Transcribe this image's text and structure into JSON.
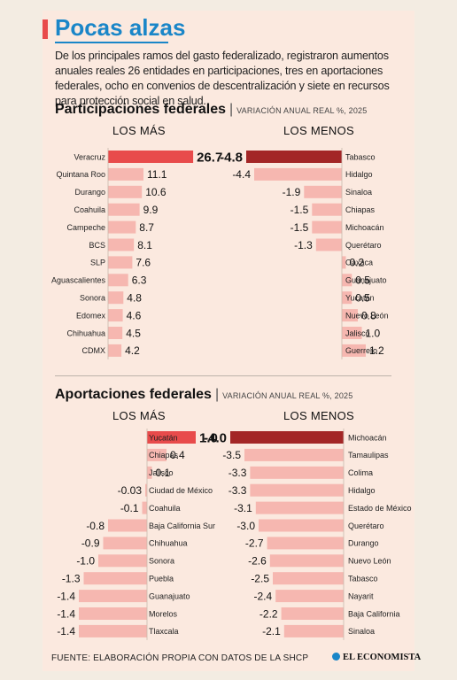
{
  "page": {
    "title": "Pocas alzas",
    "intro": "De los principales ramos del gasto federalizado, registraron aumentos anuales reales 26 entidades en participaciones, tres en aportaciones federales, ocho en convenios de descentralización y siete en recursos para protección social en salud.",
    "source": "FUENTE: ELABORACIÓN PROPIA CON DATOS DE LA SHCP",
    "brand": "EL ECONOMISTA"
  },
  "colors": {
    "accent": "#1a86c8",
    "top_pos": "#e84b4b",
    "top_neg": "#a32626",
    "bar": "#f6b7b0",
    "title_marker": "#e84b4b"
  },
  "chart_data": [
    {
      "type": "bar",
      "title": "Participaciones federales",
      "subtitle": "VARIACIÓN ANUAL REAL %, 2025",
      "panels": [
        {
          "heading": "LOS MÁS",
          "categories": [
            "Veracruz",
            "Quintana Roo",
            "Durango",
            "Coahuila",
            "Campeche",
            "BCS",
            "SLP",
            "Aguascalientes",
            "Sonora",
            "Edomex",
            "Chihuahua",
            "CDMX"
          ],
          "values": [
            26.7,
            11.1,
            10.6,
            9.9,
            8.7,
            8.1,
            7.6,
            6.3,
            4.8,
            4.6,
            4.5,
            4.2
          ],
          "labels": [
            "26.7",
            "11.1",
            "10.6",
            "9.9",
            "8.7",
            "8.1",
            "7.6",
            "6.3",
            "4.8",
            "4.6",
            "4.5",
            "4.2"
          ]
        },
        {
          "heading": "LOS MENOS",
          "categories": [
            "Tabasco",
            "Hidalgo",
            "Sinaloa",
            "Chiapas",
            "Michoacán",
            "Querétaro",
            "Oaxaca",
            "Guanajuato",
            "Yucatán",
            "Nuevo León",
            "Jalisco",
            "Guerrero"
          ],
          "values": [
            -4.8,
            -4.4,
            -1.9,
            -1.5,
            -1.5,
            -1.3,
            0.2,
            0.5,
            0.5,
            0.8,
            1.0,
            1.2
          ],
          "labels": [
            "-4.8",
            "-4.4",
            "-1.9",
            "-1.5",
            "-1.5",
            "-1.3",
            "0.2",
            "0.5",
            "0.5",
            "0.8",
            "1.0",
            "1.2"
          ]
        }
      ]
    },
    {
      "type": "bar",
      "title": "Aportaciones federales",
      "subtitle": "VARIACIÓN ANUAL REAL %, 2025",
      "panels": [
        {
          "heading": "LOS MÁS",
          "categories": [
            "Yucatán",
            "Chiapas",
            "Jalisco",
            "Ciudad de México",
            "Coahuila",
            "Baja California Sur",
            "Chihuahua",
            "Sonora",
            "Puebla",
            "Guanajuato",
            "Morelos",
            "Tlaxcala"
          ],
          "values": [
            1.0,
            0.4,
            0.1,
            -0.03,
            -0.1,
            -0.8,
            -0.9,
            -1.0,
            -1.3,
            -1.4,
            -1.4,
            -1.4
          ],
          "labels": [
            "1.0",
            "0.4",
            "0.1",
            "-0.03",
            "-0.1",
            "-0.8",
            "-0.9",
            "-1.0",
            "-1.3",
            "-1.4",
            "-1.4",
            "-1.4"
          ]
        },
        {
          "heading": "LOS MENOS",
          "categories": [
            "Michoacán",
            "Tamaulipas",
            "Colima",
            "Hidalgo",
            "Estado de México",
            "Querétaro",
            "Durango",
            "Nuevo León",
            "Tabasco",
            "Nayarit",
            "Baja California",
            "Sinaloa"
          ],
          "values": [
            -4.0,
            -3.5,
            -3.3,
            -3.3,
            -3.1,
            -3.0,
            -2.7,
            -2.6,
            -2.5,
            -2.4,
            -2.2,
            -2.1
          ],
          "labels": [
            "-4.0",
            "-3.5",
            "-3.3",
            "-3.3",
            "-3.1",
            "-3.0",
            "-2.7",
            "-2.6",
            "-2.5",
            "-2.4",
            "-2.2",
            "-2.1"
          ]
        }
      ]
    }
  ]
}
